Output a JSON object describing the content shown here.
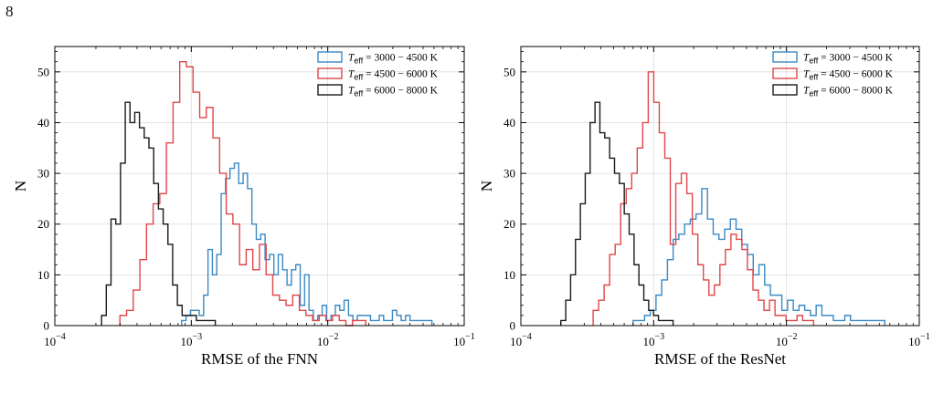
{
  "page_number": "8",
  "chart_data": [
    {
      "type": "histogram",
      "xscale": "log",
      "xlabel": "RMSE of the FNN",
      "ylabel": "N",
      "xlim": [
        0.0001,
        0.1
      ],
      "ylim": [
        0,
        55
      ],
      "xticks": [
        0.0001,
        0.001,
        0.01,
        0.1
      ],
      "xtick_labels": [
        "10−4",
        "10−3",
        "10−2",
        "10−1"
      ],
      "yticks": [
        0,
        10,
        20,
        30,
        40,
        50
      ],
      "grid": true,
      "legend_position": "top-right",
      "series": [
        {
          "name_math": "T",
          "name_sub": "eff",
          "name_rest": " = 3000 − 4500 K",
          "color": "#3a89c4",
          "bins_start": 0.00085,
          "bins_end": 0.058,
          "counts": [
            1,
            2,
            3,
            3,
            2,
            6,
            15,
            10,
            14,
            26,
            29,
            31,
            32,
            28,
            30,
            27,
            20,
            17,
            18,
            13,
            14,
            10,
            14,
            11,
            8,
            11,
            12,
            4,
            10,
            3,
            1,
            2,
            4,
            1,
            2,
            4,
            3,
            5,
            2,
            1,
            2,
            2,
            2,
            1,
            1,
            2,
            1,
            1,
            3,
            2,
            1,
            2,
            1,
            1,
            1,
            1,
            1
          ]
        },
        {
          "name_math": "T",
          "name_sub": "eff",
          "name_rest": " = 4500 − 6000 K",
          "color": "#e0464a",
          "bins_start": 0.0003,
          "bins_end": 0.019,
          "counts": [
            2,
            3,
            7,
            13,
            20,
            24,
            26,
            36,
            44,
            52,
            51,
            46,
            41,
            43,
            37,
            30,
            22,
            20,
            12,
            15,
            11,
            16,
            10,
            6,
            5,
            4,
            6,
            3,
            2,
            1,
            2,
            1,
            2,
            1,
            0,
            1,
            1
          ]
        },
        {
          "name_math": "T",
          "name_sub": "eff",
          "name_rest": " = 6000 − 8000 K",
          "color": "#1a1a1a",
          "bins_start": 0.00022,
          "bins_end": 0.0015,
          "counts": [
            2,
            8,
            21,
            20,
            32,
            44,
            40,
            42,
            39,
            37,
            35,
            28,
            23,
            20,
            16,
            8,
            4,
            2,
            2,
            2,
            1,
            1,
            1,
            1
          ]
        }
      ]
    },
    {
      "type": "histogram",
      "xscale": "log",
      "xlabel": "RMSE of the ResNet",
      "ylabel": "N",
      "xlim": [
        0.0001,
        0.1
      ],
      "ylim": [
        0,
        55
      ],
      "xticks": [
        0.0001,
        0.001,
        0.01,
        0.1
      ],
      "xtick_labels": [
        "10−4",
        "10−3",
        "10−2",
        "10−1"
      ],
      "yticks": [
        0,
        10,
        20,
        30,
        40,
        50
      ],
      "grid": true,
      "legend_position": "top-right",
      "series": [
        {
          "name_math": "T",
          "name_sub": "eff",
          "name_rest": " = 3000 − 4500 K",
          "color": "#3a89c4",
          "bins_start": 0.0007,
          "bins_end": 0.055,
          "counts": [
            1,
            1,
            2,
            3,
            6,
            9,
            13,
            17,
            18,
            20,
            21,
            22,
            27,
            21,
            18,
            17,
            19,
            21,
            19,
            16,
            14,
            10,
            12,
            8,
            6,
            6,
            3,
            5,
            3,
            4,
            3,
            2,
            4,
            2,
            2,
            1,
            1,
            2,
            1,
            1,
            1,
            1,
            1,
            1
          ]
        },
        {
          "name_math": "T",
          "name_sub": "eff",
          "name_rest": " = 4500 − 6000 K",
          "color": "#e0464a",
          "bins_start": 0.00035,
          "bins_end": 0.016,
          "counts": [
            3,
            5,
            8,
            14,
            16,
            24,
            27,
            30,
            35,
            40,
            50,
            44,
            38,
            33,
            16,
            28,
            30,
            26,
            18,
            12,
            9,
            6,
            8,
            12,
            15,
            18,
            17,
            15,
            11,
            7,
            5,
            3,
            5,
            2,
            2,
            1,
            1,
            2,
            1,
            1
          ]
        },
        {
          "name_math": "T",
          "name_sub": "eff",
          "name_rest": " = 6000 − 8000 K",
          "color": "#1a1a1a",
          "bins_start": 0.0002,
          "bins_end": 0.0014,
          "counts": [
            1,
            5,
            10,
            17,
            24,
            30,
            40,
            44,
            38,
            37,
            33,
            30,
            28,
            22,
            18,
            12,
            8,
            5,
            3,
            2,
            1,
            1,
            1
          ]
        }
      ]
    }
  ]
}
